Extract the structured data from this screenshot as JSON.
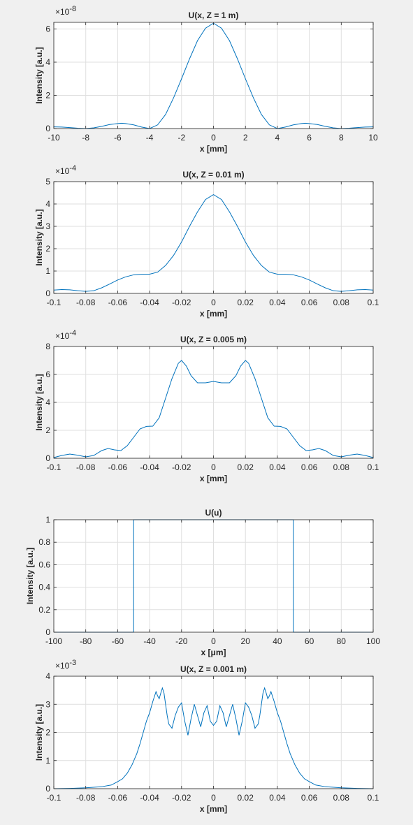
{
  "colors": {
    "background": "#f0f0f0",
    "axes_bg": "#ffffff",
    "grid": "#dfdfdf",
    "axis": "#262626",
    "series": "#0072bd"
  },
  "chart_data": [
    {
      "type": "line",
      "title": "U(x, Z = 1 m)",
      "xlabel": "x [mm]",
      "ylabel": "Intensity [a.u.]",
      "xlim": [
        -10,
        10
      ],
      "ylim": [
        0,
        6.4
      ],
      "xticks": [
        -10,
        -8,
        -6,
        -4,
        -2,
        0,
        2,
        4,
        6,
        8,
        10
      ],
      "xtick_labels": [
        "-10",
        "-8",
        "-6",
        "-4",
        "-2",
        "0",
        "2",
        "4",
        "6",
        "8",
        "10"
      ],
      "yticks": [
        0,
        2,
        4,
        6
      ],
      "ytick_labels": [
        "0",
        "2",
        "4",
        "6"
      ],
      "y_exponent": "×10",
      "y_exponent_power": "-8",
      "grid": true,
      "x": [
        -10,
        -9.5,
        -9,
        -8.5,
        -8,
        -7.5,
        -7,
        -6.5,
        -6,
        -5.75,
        -5.5,
        -5,
        -4.5,
        -4,
        -3.5,
        -3,
        -2.5,
        -2,
        -1.5,
        -1,
        -0.5,
        0,
        0.5,
        1,
        1.5,
        2,
        2.5,
        3,
        3.5,
        4,
        4.5,
        5,
        5.5,
        5.75,
        6,
        6.5,
        7,
        7.5,
        8,
        8.5,
        9,
        9.5,
        10
      ],
      "y": [
        0.1,
        0.09,
        0.06,
        0.02,
        0.0,
        0.04,
        0.13,
        0.24,
        0.3,
        0.32,
        0.3,
        0.22,
        0.09,
        0.0,
        0.22,
        0.85,
        1.85,
        3.0,
        4.2,
        5.3,
        6.05,
        6.35,
        6.05,
        5.3,
        4.2,
        3.0,
        1.85,
        0.85,
        0.22,
        0.0,
        0.09,
        0.22,
        0.3,
        0.32,
        0.3,
        0.24,
        0.13,
        0.04,
        0.0,
        0.02,
        0.06,
        0.09,
        0.1
      ]
    },
    {
      "type": "line",
      "title": "U(x, Z = 0.01 m)",
      "xlabel": "x [mm]",
      "ylabel": "Intensity [a.u.]",
      "xlim": [
        -0.1,
        0.1
      ],
      "ylim": [
        0,
        5
      ],
      "xticks": [
        -0.1,
        -0.08,
        -0.06,
        -0.04,
        -0.02,
        0,
        0.02,
        0.04,
        0.06,
        0.08,
        0.1
      ],
      "xtick_labels": [
        "-0.1",
        "-0.08",
        "-0.06",
        "-0.04",
        "-0.02",
        "0",
        "0.02",
        "0.04",
        "0.06",
        "0.08",
        "0.1"
      ],
      "yticks": [
        0,
        1,
        2,
        3,
        4,
        5
      ],
      "ytick_labels": [
        "0",
        "1",
        "2",
        "3",
        "4",
        "5"
      ],
      "y_exponent": "×10",
      "y_exponent_power": "-4",
      "grid": true,
      "x": [
        -0.1,
        -0.095,
        -0.09,
        -0.085,
        -0.08,
        -0.075,
        -0.07,
        -0.065,
        -0.06,
        -0.055,
        -0.05,
        -0.045,
        -0.04,
        -0.035,
        -0.03,
        -0.025,
        -0.02,
        -0.015,
        -0.01,
        -0.005,
        0,
        0.005,
        0.01,
        0.015,
        0.02,
        0.025,
        0.03,
        0.035,
        0.04,
        0.045,
        0.05,
        0.055,
        0.06,
        0.065,
        0.07,
        0.075,
        0.08,
        0.085,
        0.09,
        0.095,
        0.1
      ],
      "y": [
        0.15,
        0.17,
        0.16,
        0.12,
        0.09,
        0.12,
        0.25,
        0.42,
        0.6,
        0.74,
        0.83,
        0.86,
        0.86,
        0.95,
        1.25,
        1.7,
        2.3,
        3.0,
        3.65,
        4.2,
        4.42,
        4.2,
        3.65,
        3.0,
        2.3,
        1.7,
        1.25,
        0.95,
        0.86,
        0.86,
        0.83,
        0.74,
        0.6,
        0.42,
        0.25,
        0.12,
        0.09,
        0.12,
        0.16,
        0.17,
        0.15
      ]
    },
    {
      "type": "line",
      "title": "U(x, Z = 0.005 m)",
      "xlabel": "x [mm]",
      "ylabel": "Intensity [a.u.]",
      "xlim": [
        -0.1,
        0.1
      ],
      "ylim": [
        0,
        8
      ],
      "xticks": [
        -0.1,
        -0.08,
        -0.06,
        -0.04,
        -0.02,
        0,
        0.02,
        0.04,
        0.06,
        0.08,
        0.1
      ],
      "xtick_labels": [
        "-0.1",
        "-0.08",
        "-0.06",
        "-0.04",
        "-0.02",
        "0",
        "0.02",
        "0.04",
        "0.06",
        "0.08",
        "0.1"
      ],
      "yticks": [
        0,
        2,
        4,
        6,
        8
      ],
      "ytick_labels": [
        "0",
        "2",
        "4",
        "6",
        "8"
      ],
      "y_exponent": "×10",
      "y_exponent_power": "-4",
      "grid": true,
      "x": [
        -0.1,
        -0.095,
        -0.09,
        -0.085,
        -0.08,
        -0.075,
        -0.07,
        -0.066,
        -0.062,
        -0.058,
        -0.054,
        -0.05,
        -0.046,
        -0.042,
        -0.038,
        -0.034,
        -0.03,
        -0.026,
        -0.022,
        -0.02,
        -0.017,
        -0.014,
        -0.01,
        -0.005,
        0,
        0.005,
        0.01,
        0.014,
        0.017,
        0.02,
        0.022,
        0.026,
        0.03,
        0.034,
        0.038,
        0.042,
        0.046,
        0.05,
        0.054,
        0.058,
        0.062,
        0.066,
        0.07,
        0.075,
        0.08,
        0.085,
        0.09,
        0.095,
        0.1
      ],
      "y": [
        0.05,
        0.2,
        0.3,
        0.22,
        0.1,
        0.2,
        0.55,
        0.7,
        0.6,
        0.55,
        0.9,
        1.5,
        2.1,
        2.28,
        2.3,
        2.9,
        4.3,
        5.7,
        6.8,
        7.0,
        6.6,
        5.9,
        5.4,
        5.4,
        5.5,
        5.4,
        5.4,
        5.9,
        6.6,
        7.0,
        6.8,
        5.7,
        4.3,
        2.9,
        2.3,
        2.28,
        2.1,
        1.5,
        0.9,
        0.55,
        0.6,
        0.7,
        0.55,
        0.2,
        0.1,
        0.22,
        0.3,
        0.2,
        0.05
      ]
    },
    {
      "type": "line",
      "title": "U(u)",
      "xlabel": "x [μm]",
      "ylabel": "Intensity [a.u.]",
      "xlim": [
        -100,
        100
      ],
      "ylim": [
        0,
        1
      ],
      "xticks": [
        -100,
        -80,
        -60,
        -40,
        -20,
        0,
        20,
        40,
        60,
        80,
        100
      ],
      "xtick_labels": [
        "-100",
        "-80",
        "-60",
        "-40",
        "-20",
        "0",
        "20",
        "40",
        "60",
        "80",
        "100"
      ],
      "yticks": [
        0,
        0.2,
        0.4,
        0.6,
        0.8,
        1
      ],
      "ytick_labels": [
        "0",
        "0.2",
        "0.4",
        "0.6",
        "0.8",
        "1"
      ],
      "y_exponent": "",
      "y_exponent_power": "",
      "grid": true,
      "x": [
        -100,
        -50,
        -50,
        50,
        50,
        100
      ],
      "y": [
        0,
        0,
        1,
        1,
        0,
        0
      ]
    },
    {
      "type": "line",
      "title": "U(x, Z = 0.001 m)",
      "xlabel": "x [mm]",
      "ylabel": "Intensity [a.u.]",
      "xlim": [
        -0.1,
        0.1
      ],
      "ylim": [
        0,
        4
      ],
      "xticks": [
        -0.1,
        -0.08,
        -0.06,
        -0.04,
        -0.02,
        0,
        0.02,
        0.04,
        0.06,
        0.08,
        0.1
      ],
      "xtick_labels": [
        "-0.1",
        "-0.08",
        "-0.06",
        "-0.04",
        "-0.02",
        "0",
        "0.02",
        "0.04",
        "0.06",
        "0.08",
        "0.1"
      ],
      "yticks": [
        0,
        1,
        2,
        3,
        4
      ],
      "ytick_labels": [
        "0",
        "1",
        "2",
        "3",
        "4"
      ],
      "y_exponent": "×10",
      "y_exponent_power": "-3",
      "grid": true,
      "x": [
        -0.1,
        -0.09,
        -0.08,
        -0.07,
        -0.064,
        -0.06,
        -0.057,
        -0.054,
        -0.051,
        -0.048,
        -0.046,
        -0.044,
        -0.042,
        -0.04,
        -0.038,
        -0.036,
        -0.035,
        -0.034,
        -0.033,
        -0.032,
        -0.031,
        -0.03,
        -0.029,
        -0.028,
        -0.026,
        -0.024,
        -0.022,
        -0.02,
        -0.018,
        -0.016,
        -0.014,
        -0.012,
        -0.01,
        -0.008,
        -0.006,
        -0.004,
        -0.002,
        0,
        0.002,
        0.004,
        0.006,
        0.008,
        0.01,
        0.012,
        0.014,
        0.016,
        0.018,
        0.02,
        0.022,
        0.024,
        0.026,
        0.028,
        0.029,
        0.03,
        0.031,
        0.032,
        0.033,
        0.034,
        0.035,
        0.036,
        0.038,
        0.04,
        0.042,
        0.044,
        0.046,
        0.048,
        0.051,
        0.054,
        0.057,
        0.06,
        0.064,
        0.07,
        0.08,
        0.09,
        0.1
      ],
      "y": [
        0.0,
        0.01,
        0.03,
        0.07,
        0.13,
        0.25,
        0.35,
        0.55,
        0.85,
        1.25,
        1.6,
        2.0,
        2.4,
        2.7,
        3.1,
        3.45,
        3.3,
        3.2,
        3.4,
        3.58,
        3.4,
        3.0,
        2.6,
        2.3,
        2.15,
        2.6,
        2.9,
        3.05,
        2.4,
        1.9,
        2.5,
        3.0,
        2.6,
        2.2,
        2.7,
        2.95,
        2.4,
        2.25,
        2.4,
        2.95,
        2.7,
        2.2,
        2.6,
        3.0,
        2.5,
        1.9,
        2.4,
        3.05,
        2.9,
        2.6,
        2.15,
        2.3,
        2.6,
        3.0,
        3.4,
        3.58,
        3.4,
        3.2,
        3.3,
        3.45,
        3.1,
        2.7,
        2.4,
        2.0,
        1.6,
        1.25,
        0.85,
        0.55,
        0.35,
        0.25,
        0.13,
        0.07,
        0.03,
        0.01,
        0.0
      ]
    }
  ]
}
